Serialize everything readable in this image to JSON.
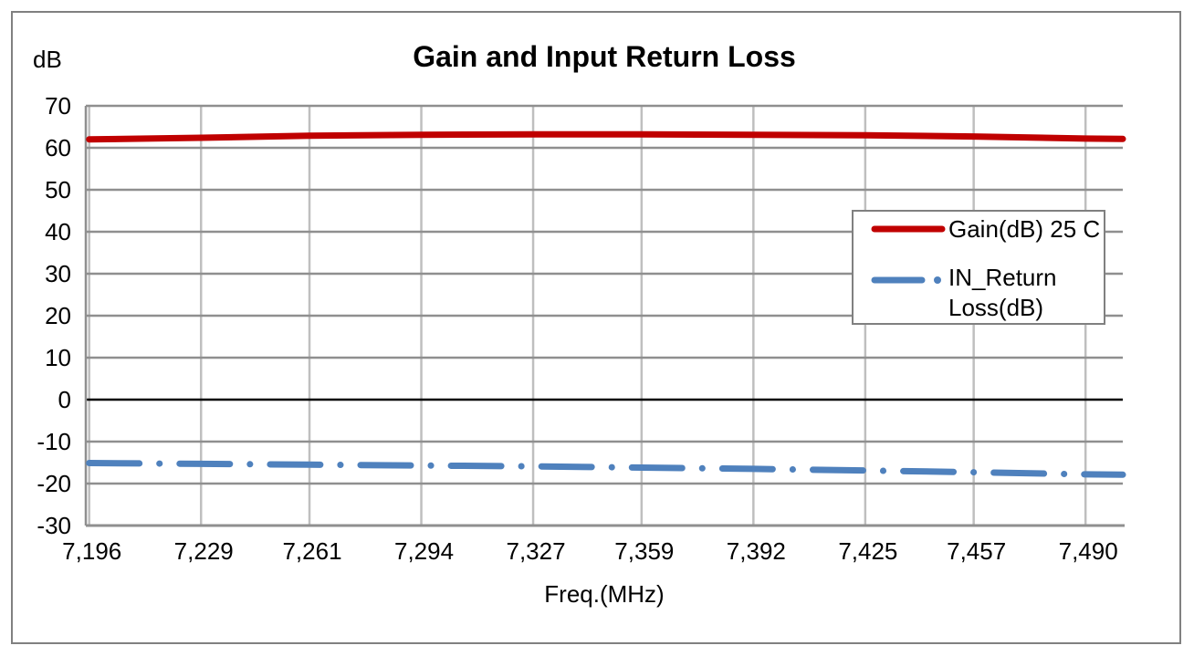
{
  "chart": {
    "title": "Gain and Input Return Loss",
    "y_unit_label": "dB",
    "x_axis_title": "Freq.(MHz)"
  },
  "legend": {
    "items": [
      {
        "label": "Gain(dB) 25 C",
        "series": "gain"
      },
      {
        "label": "IN_Return Loss(dB)",
        "series": "in_return_loss"
      }
    ]
  },
  "colors": {
    "gain_line": "#C00000",
    "return_loss_line": "#4F81BD",
    "h_gridline": "#8F8F8F",
    "v_gridline": "#BFBFBF",
    "zero_line": "#000000",
    "axis_line": "#8F8F8F",
    "frame_border": "#808080",
    "text": "#000000",
    "background": "#FFFFFF"
  },
  "chart_data": {
    "type": "line",
    "title": "Gain and Input Return Loss",
    "xlabel": "Freq.(MHz)",
    "ylabel": "dB",
    "xlim": [
      7195,
      7501
    ],
    "ylim": [
      -30,
      70
    ],
    "grid": true,
    "legend_position": "right-overlay",
    "x_ticks": [
      7196,
      7229,
      7261,
      7294,
      7327,
      7359,
      7392,
      7425,
      7457,
      7490
    ],
    "x_tick_labels": [
      "7,196",
      "7,229",
      "7,261",
      "7,294",
      "7,327",
      "7,359",
      "7,392",
      "7,425",
      "7,457",
      "7,490"
    ],
    "y_ticks": [
      70,
      60,
      50,
      40,
      30,
      20,
      10,
      0,
      -10,
      -20,
      -30
    ],
    "series": [
      {
        "name": "Gain(dB) 25 C",
        "color": "#C00000",
        "style": "solid",
        "line_width": 7,
        "x": [
          7196,
          7229,
          7261,
          7294,
          7327,
          7359,
          7392,
          7425,
          7457,
          7490,
          7501
        ],
        "y": [
          62.0,
          62.4,
          62.9,
          63.1,
          63.2,
          63.2,
          63.1,
          63.0,
          62.7,
          62.2,
          62.1
        ]
      },
      {
        "name": "IN_Return Loss(dB)",
        "color": "#4F81BD",
        "style": "dash-dot",
        "line_width": 7,
        "x": [
          7196,
          7229,
          7261,
          7294,
          7327,
          7359,
          7392,
          7425,
          7457,
          7490,
          7501
        ],
        "y": [
          -15.1,
          -15.3,
          -15.5,
          -15.7,
          -15.9,
          -16.2,
          -16.5,
          -16.9,
          -17.3,
          -17.8,
          -17.9
        ]
      }
    ]
  }
}
